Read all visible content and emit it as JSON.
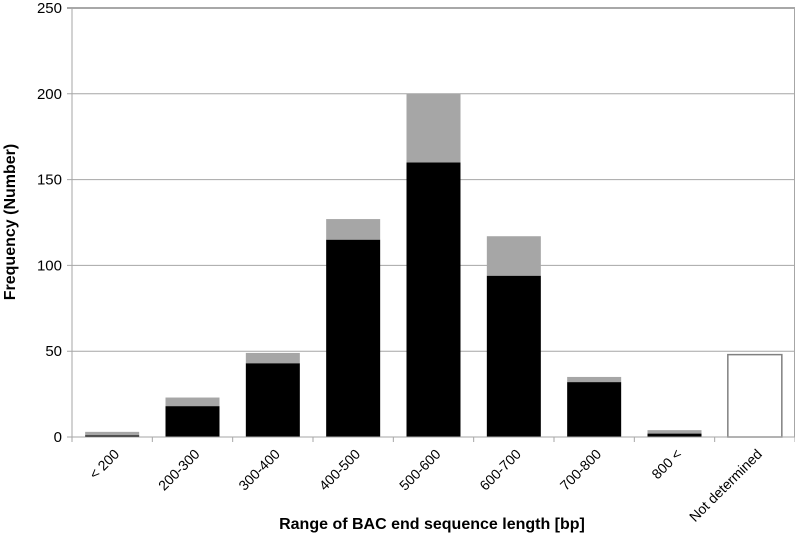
{
  "chart_data": {
    "type": "bar",
    "stacked": true,
    "title": "",
    "xlabel": "Range of BAC end sequence length [bp]",
    "ylabel": "Frequency (Number)",
    "ylim": [
      0,
      250
    ],
    "yticks": [
      0,
      50,
      100,
      150,
      200,
      250
    ],
    "grid": true,
    "legend": null,
    "categories": [
      "< 200",
      "200-300",
      "300-400",
      "400-500",
      "500-600",
      "600-700",
      "700-800",
      "800 <",
      "Not determined"
    ],
    "series": [
      {
        "name": "black segment",
        "color": "#000000",
        "values": [
          1,
          18,
          43,
          115,
          160,
          94,
          32,
          2,
          0
        ]
      },
      {
        "name": "gray segment",
        "color": "#a6a6a6",
        "values": [
          2,
          5,
          6,
          12,
          40,
          23,
          3,
          2,
          0
        ]
      },
      {
        "name": "not determined (white)",
        "color": "#ffffff",
        "edge": "#808080",
        "values": [
          0,
          0,
          0,
          0,
          0,
          0,
          0,
          0,
          48
        ]
      }
    ],
    "totals": [
      3,
      23,
      49,
      127,
      200,
      117,
      35,
      4,
      48
    ]
  },
  "colors": {
    "grid": "#a6a6a6",
    "axis": "#a6a6a6",
    "bar_black": "#000000",
    "bar_gray": "#a6a6a6",
    "bar_white_edge": "#808080"
  }
}
